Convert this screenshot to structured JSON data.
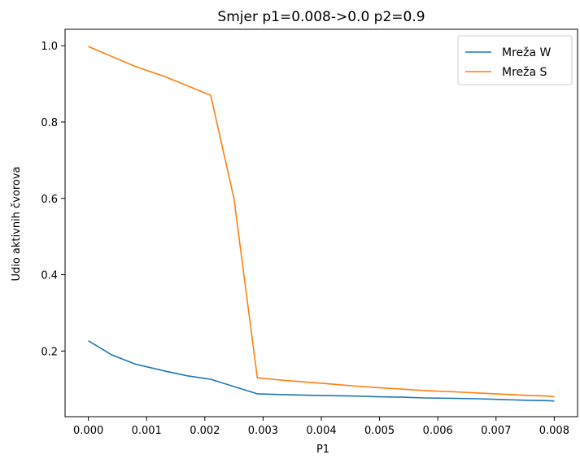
{
  "chart_data": {
    "type": "line",
    "title": "Smjer p1=0.008->0.0 p2=0.9",
    "xlabel": "P1",
    "ylabel": "Udio aktivnih čvorova",
    "xlim": [
      -0.0004,
      0.0084
    ],
    "ylim": [
      0.028,
      1.043
    ],
    "xticks": [
      {
        "value": 0.0,
        "label": "0.000"
      },
      {
        "value": 0.001,
        "label": "0.001"
      },
      {
        "value": 0.002,
        "label": "0.002"
      },
      {
        "value": 0.003,
        "label": "0.003"
      },
      {
        "value": 0.004,
        "label": "0.004"
      },
      {
        "value": 0.005,
        "label": "0.005"
      },
      {
        "value": 0.006,
        "label": "0.006"
      },
      {
        "value": 0.007,
        "label": "0.007"
      },
      {
        "value": 0.008,
        "label": "0.008"
      }
    ],
    "yticks": [
      {
        "value": 0.2,
        "label": "0.2"
      },
      {
        "value": 0.4,
        "label": "0.4"
      },
      {
        "value": 0.6,
        "label": "0.6"
      },
      {
        "value": 0.8,
        "label": "0.8"
      },
      {
        "value": 1.0,
        "label": "1.0"
      }
    ],
    "grid": false,
    "legend_position": "top-right",
    "series": [
      {
        "name": "Mreža W",
        "color": "#1f77b4",
        "x": [
          0.0,
          0.0004,
          0.0008,
          0.0013,
          0.0017,
          0.0021,
          0.0025,
          0.0029,
          0.0033,
          0.0038,
          0.0042,
          0.0046,
          0.005,
          0.0054,
          0.0058,
          0.0063,
          0.0067,
          0.0071,
          0.0075,
          0.0079,
          0.008
        ],
        "y": [
          0.227,
          0.19,
          0.166,
          0.148,
          0.135,
          0.126,
          0.107,
          0.088,
          0.086,
          0.084,
          0.083,
          0.082,
          0.08,
          0.079,
          0.077,
          0.076,
          0.075,
          0.073,
          0.071,
          0.07,
          0.069
        ]
      },
      {
        "name": "Mreža S",
        "color": "#ff7f0e",
        "x": [
          0.0,
          0.0004,
          0.0008,
          0.0013,
          0.0017,
          0.0021,
          0.0025,
          0.0029,
          0.0033,
          0.0038,
          0.0042,
          0.0046,
          0.005,
          0.0054,
          0.0058,
          0.0063,
          0.0067,
          0.0071,
          0.0075,
          0.0079,
          0.008
        ],
        "y": [
          0.998,
          0.972,
          0.946,
          0.92,
          0.895,
          0.87,
          0.6,
          0.13,
          0.124,
          0.118,
          0.113,
          0.108,
          0.104,
          0.1,
          0.096,
          0.093,
          0.09,
          0.087,
          0.084,
          0.082,
          0.08
        ]
      }
    ]
  }
}
